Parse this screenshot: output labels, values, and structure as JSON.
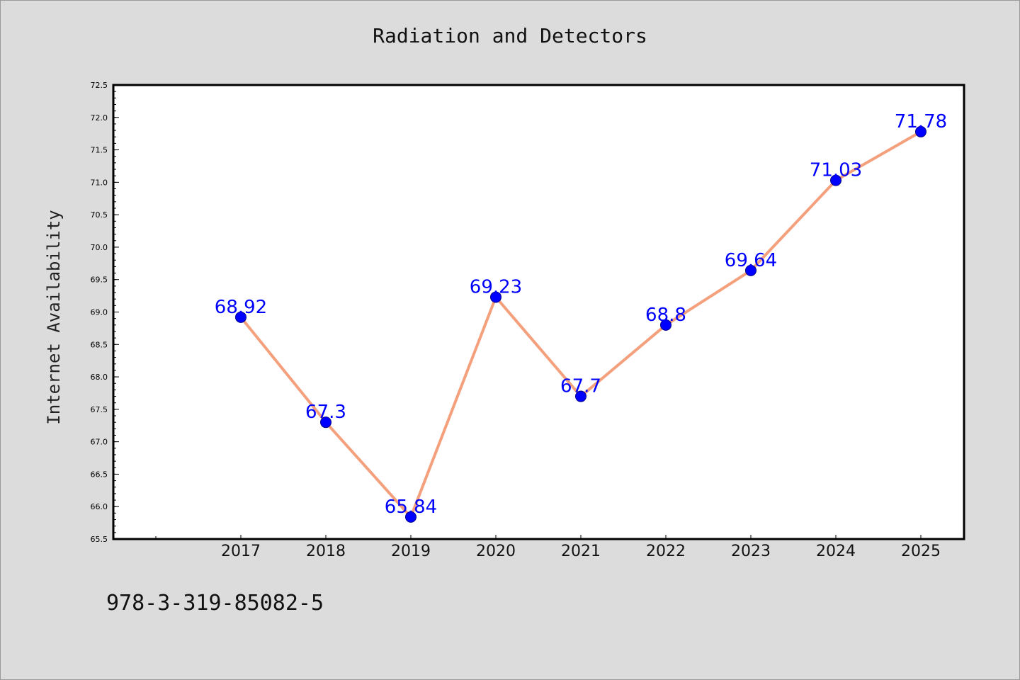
{
  "footer": {
    "code": "978-3-319-85082-5"
  },
  "chart_data": {
    "type": "line",
    "title": "Radiation and Detectors",
    "xlabel": "",
    "ylabel": "Internet Availability",
    "categories": [
      "2017",
      "2018",
      "2019",
      "2020",
      "2021",
      "2022",
      "2023",
      "2024",
      "2025"
    ],
    "series": [
      {
        "values": [
          68.92,
          67.3,
          65.84,
          69.23,
          67.7,
          68.8,
          69.64,
          71.03,
          71.78
        ],
        "labels": [
          "68.92",
          "67.3",
          "65.84",
          "69.23",
          "67.7",
          "68.8",
          "69.64",
          "71.03",
          "71.78"
        ],
        "line_color": "#f4a07c",
        "marker_color": "#0000ff",
        "label_color": "#0000ff"
      }
    ],
    "ylim": [
      65.5,
      72.5
    ],
    "yticks": [
      "65.5",
      "66.0",
      "66.5",
      "67.0",
      "67.5",
      "68.0",
      "68.5",
      "69.0",
      "69.5",
      "70.0",
      "70.5",
      "71.0",
      "71.5",
      "72.0",
      "72.5"
    ],
    "grid": false,
    "legend": "none"
  }
}
